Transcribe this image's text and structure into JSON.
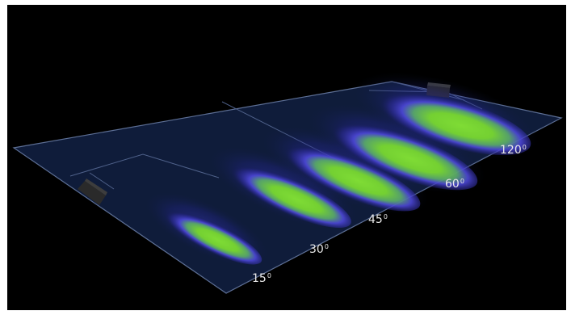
{
  "beam_labels": [
    {
      "value": "15",
      "unit": "0"
    },
    {
      "value": "30",
      "unit": "0"
    },
    {
      "value": "45",
      "unit": "0"
    },
    {
      "value": "60",
      "unit": "0"
    },
    {
      "value": "120",
      "unit": "0"
    }
  ],
  "colors": {
    "background": "#000000",
    "field": "#0f1c3a",
    "field_lines": "#5d6f95",
    "beam_core": "#7cd835",
    "beam_halo": "#4d48d8",
    "label_text": "#e8e8e8"
  }
}
